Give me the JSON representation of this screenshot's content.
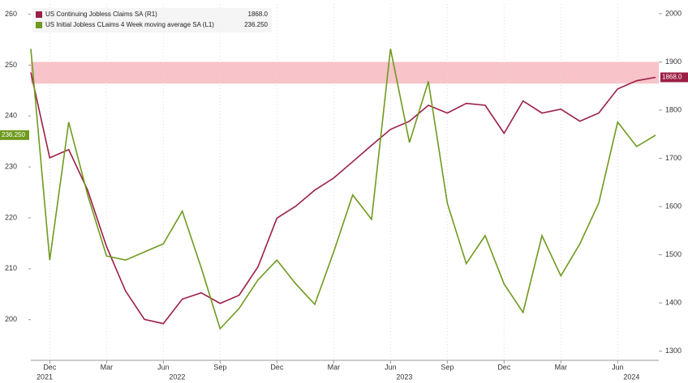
{
  "chart_data": {
    "type": "line",
    "x": [
      "2021-11",
      "2021-12",
      "2022-01",
      "2022-02",
      "2022-03",
      "2022-04",
      "2022-05",
      "2022-06",
      "2022-07",
      "2022-08",
      "2022-09",
      "2022-10",
      "2022-11",
      "2022-12",
      "2023-01",
      "2023-02",
      "2023-03",
      "2023-04",
      "2023-05",
      "2023-06",
      "2023-07",
      "2023-08",
      "2023-09",
      "2023-10",
      "2023-11",
      "2023-12",
      "2024-01",
      "2024-02",
      "2024-03",
      "2024-04",
      "2024-05",
      "2024-06",
      "2024-07",
      "2024-08"
    ],
    "xlim": [
      "2021-11",
      "2024-08"
    ],
    "xticks": [
      {
        "value": "2021-12",
        "label": "Dec"
      },
      {
        "value": "2022-03",
        "label": "Mar"
      },
      {
        "value": "2022-06",
        "label": "Jun"
      },
      {
        "value": "2022-09",
        "label": "Sep"
      },
      {
        "value": "2022-12",
        "label": "Dec"
      },
      {
        "value": "2023-03",
        "label": "Mar"
      },
      {
        "value": "2023-06",
        "label": "Jun"
      },
      {
        "value": "2023-09",
        "label": "Sep"
      },
      {
        "value": "2023-12",
        "label": "Dec"
      },
      {
        "value": "2024-03",
        "label": "Mar"
      },
      {
        "value": "2024-06",
        "label": "Jun"
      }
    ],
    "year_labels": [
      {
        "value": "2021-11",
        "label": "2021"
      },
      {
        "value": "2022-06",
        "label": "2022"
      },
      {
        "value": "2023-06",
        "label": "2023"
      },
      {
        "value": "2024-06",
        "label": "2024"
      }
    ],
    "ylim": [
      192,
      262
    ],
    "yticks": [
      200,
      210,
      220,
      230,
      240,
      250,
      260
    ],
    "y2lim": [
      1281,
      2020
    ],
    "y2ticks": [
      1300,
      1400,
      1500,
      1600,
      1700,
      1800,
      1900,
      2000
    ],
    "band_y2": [
      1855,
      1900
    ],
    "series": [
      {
        "name": "US Continuing Jobless Claims SA (R1)",
        "color": "#9b1f45",
        "axis": "y2",
        "last_label": "1868.0",
        "values": [
          1878,
          1701,
          1718,
          1634,
          1517,
          1425,
          1366,
          1357,
          1408,
          1421,
          1399,
          1416,
          1475,
          1576,
          1601,
          1634,
          1659,
          1693,
          1727,
          1760,
          1777,
          1810,
          1794,
          1814,
          1810,
          1752,
          1819,
          1794,
          1802,
          1777,
          1794,
          1844,
          1861,
          1868
        ]
      },
      {
        "name": "US Initial Jobless CLaims 4 Week moving average SA (L1)",
        "color": "#6f9a1f",
        "axis": "y",
        "last_label": "236.250",
        "values": [
          253.2,
          211.7,
          238.8,
          224.5,
          212.5,
          211.7,
          213.3,
          214.9,
          221.3,
          210.2,
          198.2,
          202.2,
          207.8,
          211.7,
          207,
          203,
          213.3,
          224.5,
          219.7,
          253.2,
          234.8,
          246.8,
          222.9,
          211,
          216.5,
          207,
          201.4,
          216.5,
          208.6,
          214.9,
          222.9,
          238.8,
          234,
          236.25
        ]
      }
    ]
  }
}
